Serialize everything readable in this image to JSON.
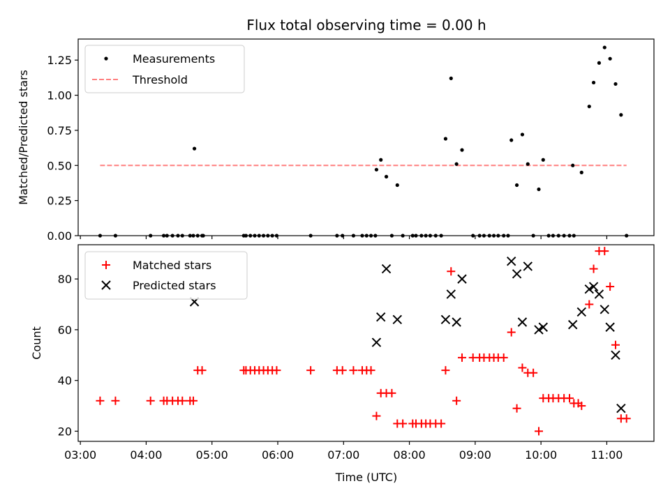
{
  "chart_data": [
    {
      "type": "scatter",
      "panel": "top",
      "title": "Flux total observing time = 0.00 h",
      "ylabel": "Matched/Predicted stars",
      "xlabel": "",
      "xlim": [
        "02:58",
        "11:43"
      ],
      "ylim": [
        0,
        1.4
      ],
      "yticks": [
        "0.00",
        "0.25",
        "0.50",
        "0.75",
        "1.00",
        "1.25"
      ],
      "legend": {
        "placement": "top-left",
        "entries": [
          "Measurements",
          "Threshold"
        ]
      },
      "series": [
        {
          "name": "Measurements",
          "style": "dot",
          "color": "#000000",
          "points": [
            [
              "03:18",
              0
            ],
            [
              "03:32",
              0
            ],
            [
              "04:04",
              0
            ],
            [
              "04:16",
              0
            ],
            [
              "04:19",
              0
            ],
            [
              "04:24",
              0
            ],
            [
              "04:29",
              0
            ],
            [
              "04:33",
              0
            ],
            [
              "04:40",
              0
            ],
            [
              "04:43",
              0
            ],
            [
              "04:47",
              0
            ],
            [
              "04:51",
              0
            ],
            [
              "04:52",
              0
            ],
            [
              "04:44",
              0.62
            ],
            [
              "05:29",
              0
            ],
            [
              "05:31",
              0
            ],
            [
              "05:35",
              0
            ],
            [
              "05:39",
              0
            ],
            [
              "05:43",
              0
            ],
            [
              "05:47",
              0
            ],
            [
              "05:51",
              0
            ],
            [
              "05:55",
              0
            ],
            [
              "05:59",
              0
            ],
            [
              "06:30",
              0
            ],
            [
              "06:54",
              0
            ],
            [
              "06:59",
              0
            ],
            [
              "07:09",
              0
            ],
            [
              "07:17",
              0
            ],
            [
              "07:21",
              0
            ],
            [
              "07:25",
              0
            ],
            [
              "07:29",
              0
            ],
            [
              "07:30",
              0.47
            ],
            [
              "07:34",
              0.54
            ],
            [
              "07:39",
              0.42
            ],
            [
              "07:44",
              0
            ],
            [
              "07:49",
              0.36
            ],
            [
              "07:54",
              0
            ],
            [
              "08:03",
              0
            ],
            [
              "08:06",
              0
            ],
            [
              "08:11",
              0
            ],
            [
              "08:15",
              0
            ],
            [
              "08:19",
              0
            ],
            [
              "08:24",
              0
            ],
            [
              "08:29",
              0
            ],
            [
              "08:33",
              0.69
            ],
            [
              "08:38",
              1.12
            ],
            [
              "08:43",
              0.51
            ],
            [
              "08:48",
              0.61
            ],
            [
              "08:58",
              0
            ],
            [
              "09:04",
              0
            ],
            [
              "09:08",
              0
            ],
            [
              "09:13",
              0
            ],
            [
              "09:17",
              0
            ],
            [
              "09:21",
              0
            ],
            [
              "09:26",
              0
            ],
            [
              "09:30",
              0
            ],
            [
              "09:33",
              0.68
            ],
            [
              "09:38",
              0.36
            ],
            [
              "09:43",
              0.72
            ],
            [
              "09:48",
              0.51
            ],
            [
              "09:53",
              0
            ],
            [
              "09:58",
              0.33
            ],
            [
              "10:02",
              0.54
            ],
            [
              "10:07",
              0
            ],
            [
              "10:11",
              0
            ],
            [
              "10:16",
              0
            ],
            [
              "10:21",
              0
            ],
            [
              "10:26",
              0
            ],
            [
              "10:30",
              0
            ],
            [
              "10:29",
              0.5
            ],
            [
              "10:37",
              0.45
            ],
            [
              "10:44",
              0.92
            ],
            [
              "10:48",
              1.09
            ],
            [
              "10:53",
              1.23
            ],
            [
              "10:58",
              1.34
            ],
            [
              "11:03",
              1.26
            ],
            [
              "11:08",
              1.08
            ],
            [
              "11:13",
              0.86
            ],
            [
              "11:18",
              0
            ]
          ]
        },
        {
          "name": "Threshold",
          "style": "dashed-line",
          "color": "#ff7f7f",
          "x": [
            "03:18",
            "11:18"
          ],
          "y": [
            0.5,
            0.5
          ]
        }
      ]
    },
    {
      "type": "scatter",
      "panel": "bottom",
      "title": "",
      "xlabel": "Time (UTC)",
      "ylabel": "Count",
      "xlim": [
        "02:58",
        "11:43"
      ],
      "ylim": [
        16,
        93.5
      ],
      "xticks": [
        "03:00",
        "04:00",
        "05:00",
        "06:00",
        "07:00",
        "08:00",
        "09:00",
        "10:00",
        "11:00"
      ],
      "yticks": [
        "20",
        "40",
        "60",
        "80"
      ],
      "legend": {
        "placement": "top-left",
        "entries": [
          "Matched stars",
          "Predicted stars"
        ]
      },
      "series": [
        {
          "name": "Matched stars",
          "style": "plus",
          "color": "#ff0000",
          "points": [
            [
              "03:18",
              32
            ],
            [
              "03:32",
              32
            ],
            [
              "04:04",
              32
            ],
            [
              "04:16",
              32
            ],
            [
              "04:19",
              32
            ],
            [
              "04:24",
              32
            ],
            [
              "04:29",
              32
            ],
            [
              "04:33",
              32
            ],
            [
              "04:40",
              32
            ],
            [
              "04:43",
              32
            ],
            [
              "04:47",
              44
            ],
            [
              "04:51",
              44
            ],
            [
              "05:29",
              44
            ],
            [
              "05:31",
              44
            ],
            [
              "05:35",
              44
            ],
            [
              "05:39",
              44
            ],
            [
              "05:43",
              44
            ],
            [
              "05:47",
              44
            ],
            [
              "05:51",
              44
            ],
            [
              "05:55",
              44
            ],
            [
              "05:59",
              44
            ],
            [
              "06:30",
              44
            ],
            [
              "06:54",
              44
            ],
            [
              "06:59",
              44
            ],
            [
              "07:09",
              44
            ],
            [
              "07:17",
              44
            ],
            [
              "07:21",
              44
            ],
            [
              "07:25",
              44
            ],
            [
              "07:30",
              26
            ],
            [
              "07:34",
              35
            ],
            [
              "07:39",
              35
            ],
            [
              "07:44",
              35
            ],
            [
              "07:49",
              23
            ],
            [
              "07:54",
              23
            ],
            [
              "08:03",
              23
            ],
            [
              "08:06",
              23
            ],
            [
              "08:11",
              23
            ],
            [
              "08:15",
              23
            ],
            [
              "08:19",
              23
            ],
            [
              "08:24",
              23
            ],
            [
              "08:29",
              23
            ],
            [
              "08:33",
              44
            ],
            [
              "08:38",
              83
            ],
            [
              "08:43",
              32
            ],
            [
              "08:48",
              49
            ],
            [
              "08:58",
              49
            ],
            [
              "09:04",
              49
            ],
            [
              "09:08",
              49
            ],
            [
              "09:13",
              49
            ],
            [
              "09:17",
              49
            ],
            [
              "09:21",
              49
            ],
            [
              "09:26",
              49
            ],
            [
              "09:33",
              59
            ],
            [
              "09:38",
              29
            ],
            [
              "09:43",
              45
            ],
            [
              "09:48",
              43
            ],
            [
              "09:53",
              43
            ],
            [
              "09:58",
              20
            ],
            [
              "10:02",
              33
            ],
            [
              "10:07",
              33
            ],
            [
              "10:11",
              33
            ],
            [
              "10:16",
              33
            ],
            [
              "10:21",
              33
            ],
            [
              "10:26",
              33
            ],
            [
              "10:30",
              31
            ],
            [
              "10:34",
              31
            ],
            [
              "10:37",
              30
            ],
            [
              "10:44",
              70
            ],
            [
              "10:48",
              84
            ],
            [
              "10:53",
              91
            ],
            [
              "10:58",
              91
            ],
            [
              "11:03",
              77
            ],
            [
              "11:08",
              54
            ],
            [
              "11:13",
              25
            ],
            [
              "11:18",
              25
            ]
          ]
        },
        {
          "name": "Predicted stars",
          "style": "x",
          "color": "#000000",
          "points": [
            [
              "04:44",
              71
            ],
            [
              "07:30",
              55
            ],
            [
              "07:34",
              65
            ],
            [
              "07:39",
              84
            ],
            [
              "07:49",
              64
            ],
            [
              "08:33",
              64
            ],
            [
              "08:38",
              74
            ],
            [
              "08:43",
              63
            ],
            [
              "08:48",
              80
            ],
            [
              "09:33",
              87
            ],
            [
              "09:38",
              82
            ],
            [
              "09:43",
              63
            ],
            [
              "09:48",
              85
            ],
            [
              "09:58",
              60
            ],
            [
              "10:02",
              61
            ],
            [
              "10:29",
              62
            ],
            [
              "10:37",
              67
            ],
            [
              "10:44",
              76
            ],
            [
              "10:48",
              77
            ],
            [
              "10:53",
              74
            ],
            [
              "10:58",
              68
            ],
            [
              "11:03",
              61
            ],
            [
              "11:08",
              50
            ],
            [
              "11:13",
              29
            ]
          ]
        }
      ]
    }
  ]
}
